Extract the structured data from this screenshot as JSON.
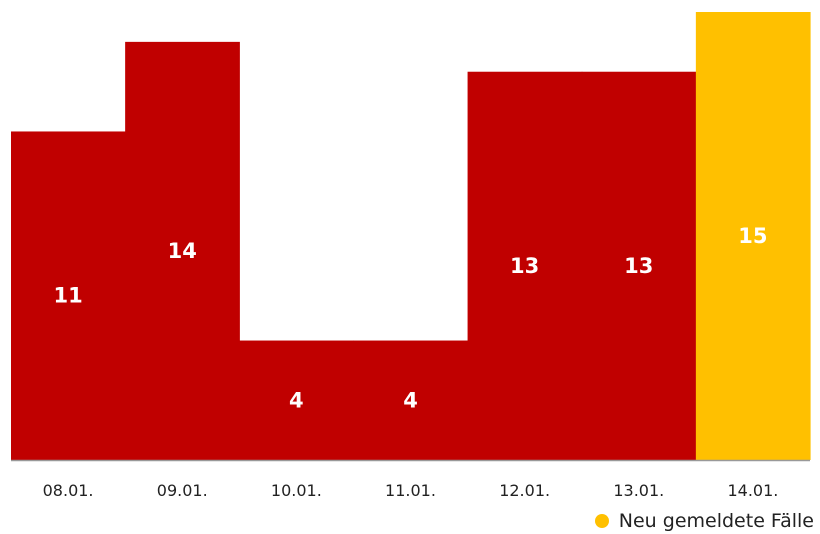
{
  "chart_data": {
    "type": "bar",
    "categories": [
      "08.01.",
      "09.01.",
      "10.01.",
      "11.01.",
      "12.01.",
      "13.01.",
      "14.01."
    ],
    "values": [
      11,
      14,
      4,
      4,
      13,
      13,
      15
    ],
    "highlight_index": 6,
    "title": "",
    "xlabel": "",
    "ylabel": "",
    "ylim": [
      0,
      15
    ],
    "grid": false,
    "legend_position": "bottom-right",
    "series": [
      {
        "name": "Neu gemeldete Fälle",
        "values": [
          11,
          14,
          4,
          4,
          13,
          13,
          15
        ]
      }
    ]
  },
  "colors": {
    "bar": "#c00000",
    "highlight": "#ffc000",
    "axis": "#999999"
  },
  "legend": {
    "label": "Neu gemeldete Fälle",
    "icon": "dot-icon"
  }
}
